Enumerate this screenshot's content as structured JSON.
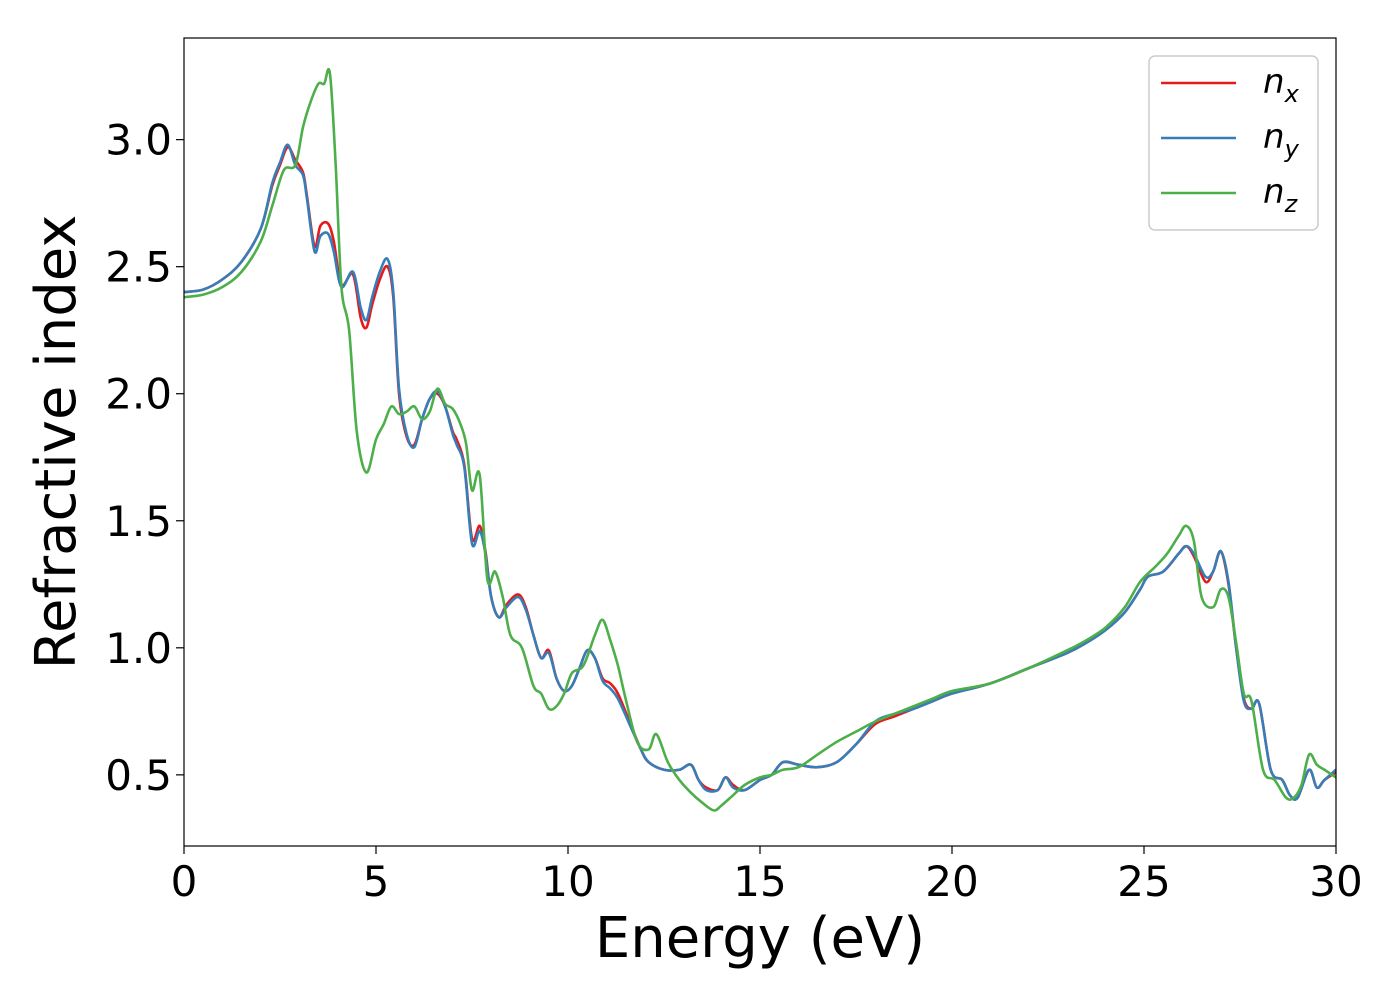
{
  "chart_data": {
    "type": "line",
    "title": "",
    "xlabel": "Energy (eV)",
    "ylabel": "Refractive index",
    "xlim": [
      0,
      30
    ],
    "ylim": [
      0.22,
      3.4
    ],
    "xticks": [
      0,
      5,
      10,
      15,
      20,
      25,
      30
    ],
    "xtick_labels": [
      "0",
      "5",
      "10",
      "15",
      "20",
      "25",
      "30"
    ],
    "yticks": [
      0.5,
      1.0,
      1.5,
      2.0,
      2.5,
      3.0
    ],
    "ytick_labels": [
      "0.5",
      "1.0",
      "1.5",
      "2.0",
      "2.5",
      "3.0"
    ],
    "grid": false,
    "legend_position": "top-right",
    "series": [
      {
        "name": "n_x",
        "label_base": "n",
        "label_sub": "x",
        "color": "#e41a1c",
        "x": [
          0,
          0.5,
          1,
          1.5,
          2,
          2.3,
          2.5,
          2.7,
          2.9,
          3.1,
          3.2,
          3.4,
          3.55,
          3.75,
          3.9,
          4.1,
          4.4,
          4.6,
          4.75,
          4.9,
          5.1,
          5.3,
          5.45,
          5.6,
          5.8,
          6.0,
          6.2,
          6.4,
          6.6,
          6.8,
          7.0,
          7.1,
          7.3,
          7.5,
          7.7,
          7.85,
          8.0,
          8.2,
          8.4,
          8.7,
          8.9,
          9.1,
          9.3,
          9.5,
          9.7,
          9.9,
          10.1,
          10.3,
          10.5,
          10.7,
          10.9,
          11.1,
          11.3,
          11.6,
          11.9,
          12.1,
          12.5,
          12.9,
          13.2,
          13.4,
          13.6,
          13.9,
          14.1,
          14.3,
          14.6,
          15.0,
          15.3,
          15.6,
          16.0,
          16.5,
          17.0,
          17.5,
          18.0,
          18.5,
          19.0,
          19.5,
          20.0,
          21.0,
          22.0,
          23.0,
          23.5,
          24.0,
          24.5,
          24.9,
          25.1,
          25.5,
          25.9,
          26.1,
          26.3,
          26.6,
          26.8,
          27.0,
          27.2,
          27.4,
          27.6,
          27.8,
          28.0,
          28.3,
          28.6,
          28.8,
          29.0,
          29.3,
          29.5,
          29.7,
          30.0
        ],
        "y": [
          2.4,
          2.41,
          2.45,
          2.52,
          2.65,
          2.82,
          2.9,
          2.97,
          2.92,
          2.87,
          2.78,
          2.58,
          2.66,
          2.67,
          2.6,
          2.43,
          2.47,
          2.3,
          2.26,
          2.35,
          2.45,
          2.5,
          2.38,
          2.0,
          1.83,
          1.8,
          1.9,
          1.98,
          2.0,
          1.95,
          1.85,
          1.82,
          1.72,
          1.43,
          1.48,
          1.38,
          1.2,
          1.12,
          1.17,
          1.21,
          1.16,
          1.05,
          0.96,
          0.99,
          0.88,
          0.83,
          0.85,
          0.92,
          0.99,
          0.96,
          0.88,
          0.86,
          0.82,
          0.71,
          0.6,
          0.55,
          0.52,
          0.52,
          0.54,
          0.48,
          0.45,
          0.44,
          0.49,
          0.46,
          0.44,
          0.48,
          0.5,
          0.55,
          0.54,
          0.53,
          0.55,
          0.62,
          0.7,
          0.73,
          0.76,
          0.79,
          0.82,
          0.86,
          0.92,
          0.98,
          1.02,
          1.07,
          1.14,
          1.23,
          1.28,
          1.3,
          1.37,
          1.4,
          1.36,
          1.26,
          1.3,
          1.38,
          1.25,
          1.0,
          0.8,
          0.76,
          0.78,
          0.52,
          0.48,
          0.42,
          0.41,
          0.52,
          0.45,
          0.48,
          0.51
        ]
      },
      {
        "name": "n_y",
        "label_base": "n",
        "label_sub": "y",
        "color": "#377eb8",
        "x": [
          0,
          0.5,
          1,
          1.5,
          2,
          2.3,
          2.5,
          2.7,
          2.9,
          3.1,
          3.2,
          3.4,
          3.55,
          3.75,
          3.9,
          4.1,
          4.4,
          4.6,
          4.75,
          4.9,
          5.1,
          5.3,
          5.45,
          5.6,
          5.8,
          6.0,
          6.2,
          6.4,
          6.6,
          6.8,
          7.0,
          7.1,
          7.3,
          7.5,
          7.7,
          7.85,
          8.0,
          8.2,
          8.4,
          8.7,
          8.9,
          9.1,
          9.3,
          9.5,
          9.7,
          9.9,
          10.1,
          10.3,
          10.5,
          10.7,
          10.9,
          11.1,
          11.3,
          11.6,
          11.9,
          12.1,
          12.5,
          12.9,
          13.2,
          13.4,
          13.6,
          13.9,
          14.1,
          14.3,
          14.6,
          15.0,
          15.3,
          15.6,
          16.0,
          16.5,
          17.0,
          17.5,
          18.0,
          18.5,
          19.0,
          19.5,
          20.0,
          21.0,
          22.0,
          23.0,
          23.5,
          24.0,
          24.5,
          24.9,
          25.1,
          25.5,
          25.9,
          26.1,
          26.3,
          26.6,
          26.8,
          27.0,
          27.2,
          27.4,
          27.6,
          27.8,
          28.0,
          28.3,
          28.6,
          28.8,
          29.0,
          29.3,
          29.5,
          29.7,
          30.0
        ],
        "y": [
          2.4,
          2.41,
          2.45,
          2.52,
          2.65,
          2.83,
          2.91,
          2.98,
          2.9,
          2.86,
          2.77,
          2.56,
          2.62,
          2.63,
          2.56,
          2.42,
          2.48,
          2.34,
          2.29,
          2.38,
          2.48,
          2.53,
          2.4,
          2.02,
          1.84,
          1.79,
          1.9,
          1.98,
          2.01,
          1.95,
          1.84,
          1.8,
          1.71,
          1.41,
          1.46,
          1.37,
          1.2,
          1.12,
          1.16,
          1.2,
          1.15,
          1.05,
          0.96,
          0.98,
          0.88,
          0.83,
          0.85,
          0.92,
          0.99,
          0.96,
          0.87,
          0.84,
          0.8,
          0.7,
          0.6,
          0.55,
          0.52,
          0.52,
          0.54,
          0.48,
          0.44,
          0.44,
          0.49,
          0.45,
          0.44,
          0.48,
          0.5,
          0.55,
          0.54,
          0.53,
          0.55,
          0.62,
          0.71,
          0.74,
          0.76,
          0.79,
          0.82,
          0.86,
          0.92,
          0.98,
          1.02,
          1.07,
          1.14,
          1.23,
          1.28,
          1.3,
          1.37,
          1.4,
          1.37,
          1.28,
          1.3,
          1.38,
          1.26,
          1.0,
          0.79,
          0.76,
          0.78,
          0.52,
          0.48,
          0.42,
          0.41,
          0.52,
          0.45,
          0.48,
          0.52
        ]
      },
      {
        "name": "n_z",
        "label_base": "n",
        "label_sub": "z",
        "color": "#4daf4a",
        "x": [
          0,
          0.5,
          1,
          1.5,
          2,
          2.3,
          2.6,
          2.9,
          3.1,
          3.3,
          3.5,
          3.65,
          3.8,
          3.95,
          4.1,
          4.3,
          4.5,
          4.75,
          5.0,
          5.2,
          5.4,
          5.6,
          5.8,
          6.0,
          6.2,
          6.4,
          6.6,
          6.8,
          7.0,
          7.2,
          7.35,
          7.5,
          7.7,
          7.9,
          8.1,
          8.3,
          8.5,
          8.8,
          9.1,
          9.3,
          9.5,
          9.7,
          9.9,
          10.1,
          10.4,
          10.7,
          10.9,
          11.1,
          11.3,
          11.5,
          11.8,
          12.1,
          12.3,
          12.6,
          12.9,
          13.2,
          13.5,
          13.8,
          14.0,
          14.3,
          14.6,
          15.0,
          15.3,
          15.6,
          16.0,
          16.5,
          17.0,
          17.5,
          18.0,
          18.5,
          19.0,
          19.5,
          20.0,
          21.0,
          22.0,
          23.0,
          23.5,
          24.0,
          24.5,
          24.9,
          25.3,
          25.6,
          25.9,
          26.1,
          26.3,
          26.5,
          26.8,
          27.0,
          27.2,
          27.4,
          27.6,
          27.8,
          28.1,
          28.4,
          28.7,
          28.9,
          29.1,
          29.3,
          29.5,
          29.7,
          30.0
        ],
        "y": [
          2.38,
          2.39,
          2.42,
          2.48,
          2.6,
          2.74,
          2.88,
          2.9,
          3.05,
          3.15,
          3.22,
          3.22,
          3.26,
          2.9,
          2.42,
          2.25,
          1.85,
          1.69,
          1.82,
          1.88,
          1.95,
          1.92,
          1.93,
          1.95,
          1.9,
          1.93,
          2.02,
          1.96,
          1.94,
          1.88,
          1.8,
          1.62,
          1.68,
          1.27,
          1.3,
          1.2,
          1.05,
          1.0,
          0.85,
          0.82,
          0.76,
          0.77,
          0.82,
          0.9,
          0.93,
          1.05,
          1.11,
          1.03,
          0.93,
          0.8,
          0.63,
          0.6,
          0.66,
          0.55,
          0.48,
          0.43,
          0.39,
          0.36,
          0.38,
          0.42,
          0.46,
          0.49,
          0.5,
          0.52,
          0.53,
          0.58,
          0.63,
          0.67,
          0.71,
          0.74,
          0.77,
          0.8,
          0.83,
          0.86,
          0.92,
          0.99,
          1.03,
          1.08,
          1.16,
          1.26,
          1.32,
          1.37,
          1.44,
          1.48,
          1.42,
          1.2,
          1.16,
          1.23,
          1.2,
          1.02,
          0.82,
          0.79,
          0.52,
          0.48,
          0.41,
          0.41,
          0.46,
          0.58,
          0.54,
          0.52,
          0.49
        ]
      }
    ]
  }
}
